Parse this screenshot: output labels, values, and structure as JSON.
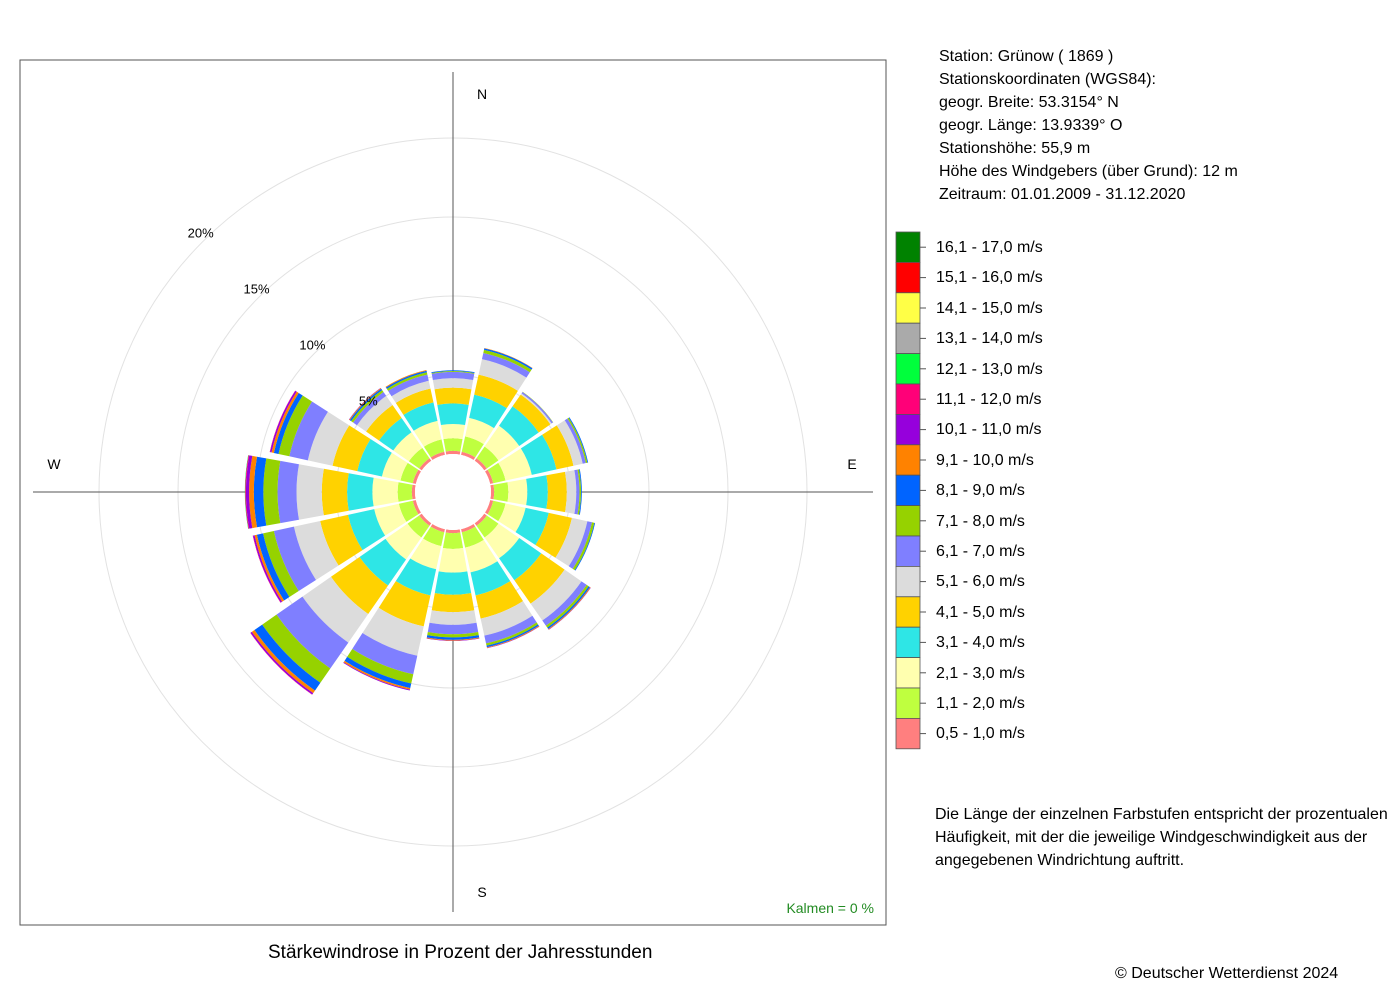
{
  "station": {
    "line1": "Station:  Grünow  ( 1869 )",
    "line2": "Stationskoordinaten (WGS84):",
    "line3": "geogr. Breite: 53.3154° N",
    "line4": "geogr. Länge: 13.9339° O",
    "line5": "Stationshöhe: 55,9 m",
    "line6": "Höhe des Windgebers (über Grund): 12 m",
    "line7": "Zeitraum: 01.01.2009 - 31.12.2020"
  },
  "note": "Die Länge der einzelnen Farbstufen entspricht der prozentualen Häufigkeit, mit der die jeweilige Windgeschwindigkeit aus der angegebenen Windrichtung auftritt.",
  "title": "Stärkewindrose in Prozent der Jahresstunden",
  "copyright": "© Deutscher Wetterdienst  2024",
  "calm_label": "Kalmen  =  0 %",
  "chart_data": {
    "type": "wind-rose",
    "title": "Stärkewindrose in Prozent der Jahresstunden",
    "directions": [
      "N",
      "NNE",
      "NE",
      "ENE",
      "E",
      "ESE",
      "SE",
      "SSE",
      "S",
      "SSW",
      "SW",
      "WSW",
      "W",
      "WNW",
      "NW",
      "NNW"
    ],
    "direction_labels": {
      "N": "N",
      "E": "E",
      "S": "S",
      "W": "W"
    },
    "radial_ticks": [
      {
        "value": 5,
        "label": "5%"
      },
      {
        "value": 10,
        "label": "10%"
      },
      {
        "value": 15,
        "label": "15%"
      },
      {
        "value": 20,
        "label": "20%"
      }
    ],
    "radial_max": 20,
    "calm_percent": 0,
    "bins": [
      {
        "label": "0,5 - 1,0 m/s",
        "color": "#FF7F7F"
      },
      {
        "label": "1,1 - 2,0 m/s",
        "color": "#BFFF3F"
      },
      {
        "label": "2,1 - 3,0 m/s",
        "color": "#FFFFAF"
      },
      {
        "label": "3,1 - 4,0 m/s",
        "color": "#2EE6E6"
      },
      {
        "label": "4,1 - 5,0 m/s",
        "color": "#FFD200"
      },
      {
        "label": "5,1 - 6,0 m/s",
        "color": "#DCDCDC"
      },
      {
        "label": "6,1 - 7,0 m/s",
        "color": "#7F7FFF"
      },
      {
        "label": "7,1 - 8,0 m/s",
        "color": "#96D200"
      },
      {
        "label": "8,1 - 9,0 m/s",
        "color": "#0064FF"
      },
      {
        "label": "9,1 - 10,0 m/s",
        "color": "#FF8200"
      },
      {
        "label": "10,1 - 11,0 m/s",
        "color": "#9600DC"
      },
      {
        "label": "11,1 - 12,0 m/s",
        "color": "#FF0078"
      },
      {
        "label": "12,1 - 13,0 m/s",
        "color": "#00FF3C"
      },
      {
        "label": "13,1 - 14,0 m/s",
        "color": "#AAAAAA"
      },
      {
        "label": "14,1 - 15,0 m/s",
        "color": "#FFFF46"
      },
      {
        "label": "15,1 - 16,0 m/s",
        "color": "#FF0000"
      },
      {
        "label": "16,1 - 17,0 m/s",
        "color": "#008200"
      }
    ],
    "series": [
      {
        "direction": "N",
        "values": [
          0.2,
          0.8,
          0.9,
          1.3,
          1.0,
          0.6,
          0.4,
          0.05,
          0.05,
          0,
          0,
          0,
          0,
          0,
          0,
          0,
          0
        ]
      },
      {
        "direction": "NNE",
        "values": [
          0.2,
          1.0,
          1.2,
          1.5,
          1.3,
          1.0,
          0.4,
          0.2,
          0.1,
          0.02,
          0,
          0,
          0,
          0,
          0,
          0,
          0
        ]
      },
      {
        "direction": "NE",
        "values": [
          0.2,
          0.9,
          1.6,
          1.5,
          0.9,
          0.1,
          0.1,
          0.02,
          0,
          0,
          0,
          0,
          0,
          0,
          0,
          0,
          0
        ]
      },
      {
        "direction": "ENE",
        "values": [
          0.2,
          0.8,
          1.7,
          1.6,
          1.1,
          0.6,
          0.2,
          0.1,
          0.05,
          0,
          0,
          0,
          0,
          0,
          0,
          0,
          0
        ]
      },
      {
        "direction": "E",
        "values": [
          0.2,
          0.9,
          1.2,
          1.3,
          1.2,
          0.6,
          0.2,
          0.1,
          0.05,
          0,
          0,
          0,
          0,
          0,
          0,
          0,
          0
        ]
      },
      {
        "direction": "ESE",
        "values": [
          0.2,
          0.8,
          1.3,
          1.5,
          1.5,
          1.0,
          0.3,
          0.15,
          0.05,
          0,
          0,
          0,
          0,
          0,
          0,
          0,
          0
        ]
      },
      {
        "direction": "SE",
        "values": [
          0.2,
          0.9,
          1.6,
          1.7,
          1.8,
          1.3,
          0.4,
          0.15,
          0.1,
          0.05,
          0.02,
          0,
          0,
          0,
          0,
          0,
          0
        ]
      },
      {
        "direction": "SSE",
        "values": [
          0.2,
          1.0,
          1.6,
          1.5,
          1.5,
          1.1,
          0.5,
          0.15,
          0.1,
          0.05,
          0.02,
          0,
          0,
          0,
          0,
          0,
          0
        ]
      },
      {
        "direction": "S",
        "values": [
          0.2,
          1.0,
          1.5,
          1.4,
          1.1,
          0.8,
          0.6,
          0.2,
          0.15,
          0.05,
          0.02,
          0,
          0,
          0,
          0,
          0,
          0
        ]
      },
      {
        "direction": "SSW",
        "values": [
          0.2,
          0.9,
          1.5,
          1.7,
          2.0,
          1.9,
          1.2,
          0.6,
          0.3,
          0.1,
          0.05,
          0,
          0,
          0,
          0,
          0,
          0
        ]
      },
      {
        "direction": "SW",
        "values": [
          0.2,
          0.9,
          1.7,
          2.0,
          2.2,
          2.2,
          2.0,
          1.1,
          0.6,
          0.2,
          0.1,
          0.02,
          0,
          0,
          0,
          0,
          0
        ]
      },
      {
        "direction": "WSW",
        "values": [
          0.2,
          0.9,
          1.6,
          1.7,
          1.8,
          1.7,
          1.3,
          0.7,
          0.4,
          0.15,
          0.1,
          0.02,
          0,
          0,
          0,
          0,
          0
        ]
      },
      {
        "direction": "W",
        "values": [
          0.2,
          0.9,
          1.6,
          1.6,
          1.6,
          1.6,
          1.2,
          0.9,
          0.6,
          0.3,
          0.2,
          0.05,
          0.02,
          0,
          0,
          0,
          0
        ]
      },
      {
        "direction": "WNW",
        "values": [
          0.2,
          0.8,
          1.2,
          1.6,
          1.6,
          1.6,
          1.2,
          0.7,
          0.3,
          0.15,
          0.1,
          0.02,
          0,
          0,
          0,
          0,
          0
        ]
      },
      {
        "direction": "NW",
        "values": [
          0.2,
          0.8,
          1.2,
          1.1,
          1.0,
          0.7,
          0.3,
          0.15,
          0.1,
          0.05,
          0.02,
          0,
          0,
          0,
          0,
          0,
          0
        ]
      },
      {
        "direction": "NNW",
        "values": [
          0.2,
          0.8,
          1.2,
          1.2,
          0.9,
          0.5,
          0.4,
          0.15,
          0.1,
          0.05,
          0,
          0,
          0,
          0,
          0,
          0,
          0
        ]
      }
    ]
  }
}
